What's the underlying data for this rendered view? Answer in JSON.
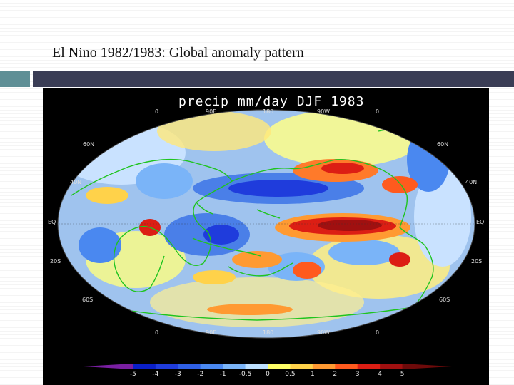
{
  "slide": {
    "title": "El Nino 1982/1983: Global anomaly pattern"
  },
  "map": {
    "title": "precip  mm/day  DJF 1983",
    "projection": "robinson",
    "lon_labels_top": [
      "0",
      "90E",
      "180",
      "90W",
      "0"
    ],
    "lon_labels_bottom": [
      "0",
      "90E",
      "180",
      "90W",
      "0"
    ],
    "lat_labels_left": [
      "60N",
      "40N",
      "EQ",
      "20S",
      "60S"
    ],
    "lat_labels_right": [
      "60N",
      "40N",
      "EQ",
      "20S",
      "60S"
    ],
    "coastline_color": "#1fc41f",
    "colorbar": {
      "ticks": [
        "-5",
        "-4",
        "-3",
        "-2",
        "-1",
        "-0.5",
        "0",
        "0.5",
        "1",
        "2",
        "3",
        "4",
        "5"
      ],
      "colors": [
        "#7a1fa2",
        "#0a1fc8",
        "#1f3cdc",
        "#2f60e6",
        "#4a88f0",
        "#7ab4f8",
        "#bde0ff",
        "#ffff66",
        "#ffd24a",
        "#ff9a32",
        "#ff5a1e",
        "#dc1e14",
        "#a01010",
        "#6e0a0a"
      ]
    }
  }
}
